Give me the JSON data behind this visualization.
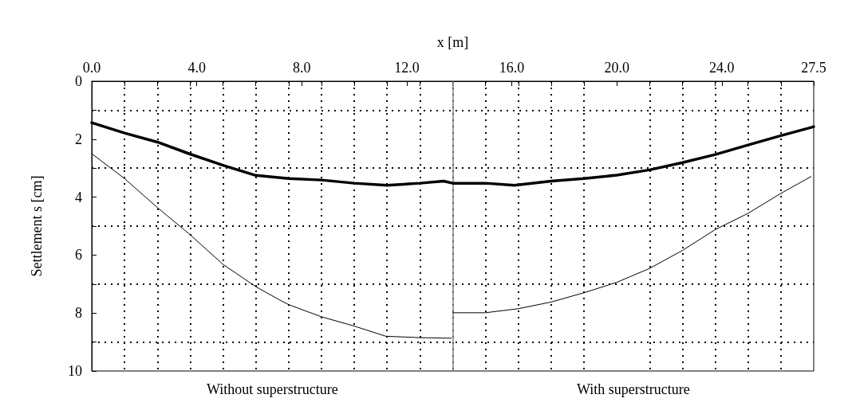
{
  "chart_data": {
    "type": "line",
    "xlabel": "x [m]",
    "ylabel": "Settlement s [cm]",
    "xlim": [
      0,
      27.5
    ],
    "ylim": [
      10,
      0
    ],
    "xticks": [
      {
        "value": 0,
        "label": "0.0"
      },
      {
        "value": 1.25,
        "label": null
      },
      {
        "value": 2.5,
        "label": null
      },
      {
        "value": 3.75,
        "label": null
      },
      {
        "value": 4,
        "label": "4.0"
      },
      {
        "value": 5,
        "label": null
      },
      {
        "value": 6.25,
        "label": null
      },
      {
        "value": 7.5,
        "label": null
      },
      {
        "value": 8,
        "label": "8.0"
      },
      {
        "value": 8.75,
        "label": null
      },
      {
        "value": 10,
        "label": null
      },
      {
        "value": 11.25,
        "label": null
      },
      {
        "value": 12,
        "label": "12.0"
      },
      {
        "value": 12.5,
        "label": null
      },
      {
        "value": 13.75,
        "label": null
      },
      {
        "value": 15,
        "label": null
      },
      {
        "value": 16,
        "label": "16.0"
      },
      {
        "value": 16.25,
        "label": null
      },
      {
        "value": 17.5,
        "label": null
      },
      {
        "value": 18.75,
        "label": null
      },
      {
        "value": 20,
        "label": "20.0"
      },
      {
        "value": 21.25,
        "label": null
      },
      {
        "value": 22.5,
        "label": null
      },
      {
        "value": 23.75,
        "label": null
      },
      {
        "value": 24,
        "label": "24.0"
      },
      {
        "value": 25,
        "label": null
      },
      {
        "value": 26.25,
        "label": null
      },
      27.5
    ],
    "yticks": [
      0,
      {
        "value": 1,
        "label": null
      },
      2,
      {
        "value": 3,
        "label": null
      },
      4,
      {
        "value": 5,
        "label": null
      },
      6,
      {
        "value": 7,
        "label": null
      },
      8,
      {
        "value": 9,
        "label": null
      },
      10
    ],
    "grid": true,
    "marker": "none",
    "line_style": "solid",
    "series": [
      {
        "color": "#000000",
        "x": [
          0,
          1.25,
          2.5,
          3.7,
          5,
          6.25,
          7.5,
          8.75,
          10,
          11.25,
          12.5,
          13.4,
          13.75,
          15,
          16.1,
          17.5,
          18.75,
          20,
          21.25,
          22.5,
          23.75,
          25,
          26.25,
          27.5
        ],
        "values": [
          1.43,
          1.79,
          2.1,
          2.5,
          2.9,
          3.25,
          3.36,
          3.41,
          3.52,
          3.59,
          3.52,
          3.45,
          3.52,
          3.52,
          3.59,
          3.45,
          3.36,
          3.24,
          3.06,
          2.81,
          2.53,
          2.2,
          1.88,
          1.57
        ]
      },
      {
        "color": "#000000",
        "x": [
          0,
          1.25,
          2.5,
          3.7,
          5,
          6.25,
          7.2,
          7.5,
          8.75,
          10,
          11.2,
          12.5,
          13.7
        ],
        "values": [
          2.5,
          3.36,
          4.36,
          5.26,
          6.32,
          7.09,
          7.57,
          7.71,
          8.13,
          8.45,
          8.8,
          8.85,
          8.87
        ]
      },
      {
        "color": "#000000",
        "x": [
          13.75,
          15,
          16.25,
          17.5,
          18.75,
          20,
          21.25,
          22.5,
          23.75,
          25,
          26.25,
          27.4
        ],
        "values": [
          7.99,
          7.99,
          7.85,
          7.62,
          7.3,
          6.94,
          6.46,
          5.84,
          5.12,
          4.56,
          3.87,
          3.29
        ]
      }
    ],
    "ref_lines": [
      {
        "axis": "x",
        "value": 13.75,
        "color": "#808080",
        "line_style": "solid"
      }
    ],
    "annotations": [
      "Without superstructure",
      "With superstructure"
    ]
  }
}
